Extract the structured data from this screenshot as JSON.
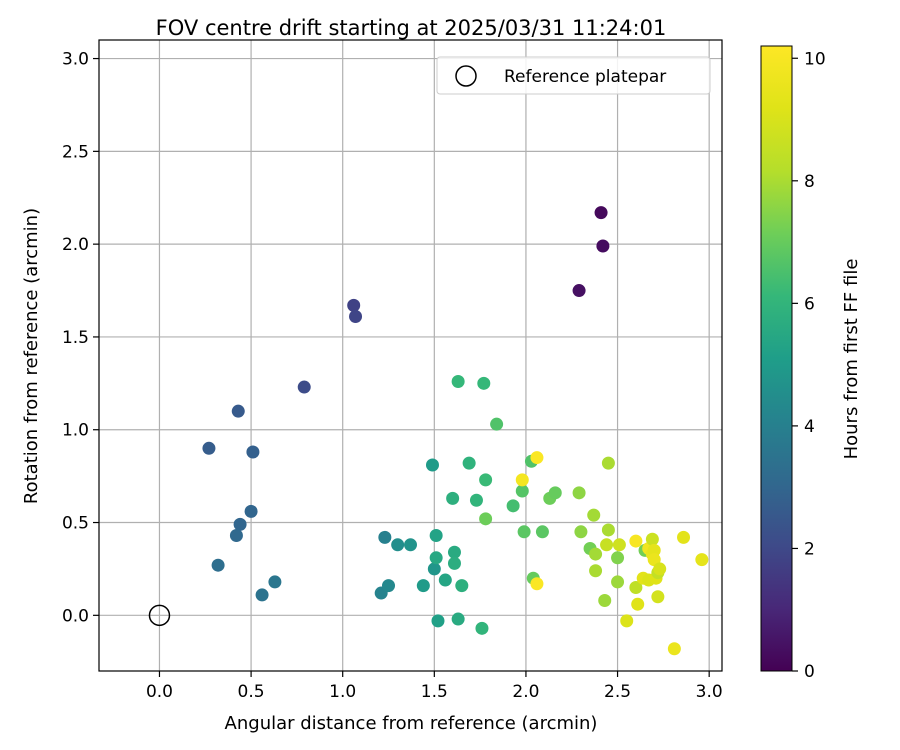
{
  "chart_data": {
    "type": "scatter",
    "title": "FOV centre drift starting at 2025/03/31 11:24:01",
    "xlabel": "Angular distance from reference (arcmin)",
    "ylabel": "Rotation from reference (arcmin)",
    "xlim": [
      -0.33,
      3.07
    ],
    "ylim": [
      -0.3,
      3.1
    ],
    "x_ticks": [
      "0.0",
      "0.5",
      "1.0",
      "1.5",
      "2.0",
      "2.5",
      "3.0"
    ],
    "y_ticks": [
      "0.0",
      "0.5",
      "1.0",
      "1.5",
      "2.0",
      "2.5",
      "3.0"
    ],
    "grid": true,
    "legend": {
      "label": "Reference platepar",
      "placement": "top-right"
    },
    "reference_point": {
      "x": 0.0,
      "y": 0.0
    },
    "colorbar": {
      "label": "Hours from first FF file",
      "colormap": "viridis",
      "range": [
        0,
        10.2
      ],
      "ticks": [
        "0",
        "2",
        "4",
        "6",
        "8",
        "10"
      ]
    },
    "points": [
      {
        "x": 2.41,
        "y": 2.17,
        "c": 0.2
      },
      {
        "x": 2.42,
        "y": 1.99,
        "c": 0.3
      },
      {
        "x": 2.29,
        "y": 1.75,
        "c": 0.4
      },
      {
        "x": 1.06,
        "y": 1.67,
        "c": 1.8
      },
      {
        "x": 1.07,
        "y": 1.61,
        "c": 1.9
      },
      {
        "x": 0.79,
        "y": 1.23,
        "c": 2.1
      },
      {
        "x": 0.43,
        "y": 1.1,
        "c": 2.6
      },
      {
        "x": 0.27,
        "y": 0.9,
        "c": 2.7
      },
      {
        "x": 0.51,
        "y": 0.88,
        "c": 2.8
      },
      {
        "x": 0.5,
        "y": 0.56,
        "c": 3.0
      },
      {
        "x": 0.44,
        "y": 0.49,
        "c": 3.0
      },
      {
        "x": 0.42,
        "y": 0.43,
        "c": 3.1
      },
      {
        "x": 0.32,
        "y": 0.27,
        "c": 3.3
      },
      {
        "x": 0.56,
        "y": 0.11,
        "c": 3.5
      },
      {
        "x": 0.63,
        "y": 0.18,
        "c": 3.6
      },
      {
        "x": 1.23,
        "y": 0.42,
        "c": 4.0
      },
      {
        "x": 1.21,
        "y": 0.12,
        "c": 4.1
      },
      {
        "x": 1.25,
        "y": 0.16,
        "c": 4.3
      },
      {
        "x": 1.3,
        "y": 0.38,
        "c": 4.5
      },
      {
        "x": 1.37,
        "y": 0.38,
        "c": 4.7
      },
      {
        "x": 1.44,
        "y": 0.16,
        "c": 5.0
      },
      {
        "x": 1.49,
        "y": 0.81,
        "c": 5.0
      },
      {
        "x": 1.5,
        "y": 0.25,
        "c": 4.8
      },
      {
        "x": 1.51,
        "y": 0.43,
        "c": 5.3
      },
      {
        "x": 1.51,
        "y": 0.31,
        "c": 5.5
      },
      {
        "x": 1.52,
        "y": -0.03,
        "c": 5.2
      },
      {
        "x": 1.56,
        "y": 0.19,
        "c": 5.4
      },
      {
        "x": 1.6,
        "y": 0.63,
        "c": 5.8
      },
      {
        "x": 1.61,
        "y": 0.34,
        "c": 5.6
      },
      {
        "x": 1.61,
        "y": 0.28,
        "c": 5.7
      },
      {
        "x": 1.63,
        "y": 1.26,
        "c": 6.1
      },
      {
        "x": 1.63,
        "y": -0.02,
        "c": 5.6
      },
      {
        "x": 1.65,
        "y": 0.16,
        "c": 5.8
      },
      {
        "x": 1.69,
        "y": 0.82,
        "c": 5.9
      },
      {
        "x": 1.73,
        "y": 0.62,
        "c": 6.0
      },
      {
        "x": 1.76,
        "y": -0.07,
        "c": 6.0
      },
      {
        "x": 1.77,
        "y": 1.25,
        "c": 6.1
      },
      {
        "x": 1.78,
        "y": 0.73,
        "c": 6.2
      },
      {
        "x": 1.78,
        "y": 0.52,
        "c": 7.1
      },
      {
        "x": 1.84,
        "y": 1.03,
        "c": 6.6
      },
      {
        "x": 1.93,
        "y": 0.59,
        "c": 6.4
      },
      {
        "x": 1.98,
        "y": 0.67,
        "c": 6.7
      },
      {
        "x": 1.99,
        "y": 0.45,
        "c": 6.8
      },
      {
        "x": 2.03,
        "y": 0.83,
        "c": 6.6
      },
      {
        "x": 2.04,
        "y": 0.2,
        "c": 7.0
      },
      {
        "x": 2.09,
        "y": 0.45,
        "c": 6.8
      },
      {
        "x": 2.13,
        "y": 0.63,
        "c": 7.1
      },
      {
        "x": 2.16,
        "y": 0.66,
        "c": 7.0
      },
      {
        "x": 1.98,
        "y": 0.73,
        "c": 9.9
      },
      {
        "x": 2.06,
        "y": 0.85,
        "c": 10.1
      },
      {
        "x": 2.06,
        "y": 0.17,
        "c": 10.1
      },
      {
        "x": 2.29,
        "y": 0.66,
        "c": 7.6
      },
      {
        "x": 2.3,
        "y": 0.45,
        "c": 7.6
      },
      {
        "x": 2.35,
        "y": 0.36,
        "c": 7.2
      },
      {
        "x": 2.37,
        "y": 0.54,
        "c": 7.9
      },
      {
        "x": 2.38,
        "y": 0.33,
        "c": 7.9
      },
      {
        "x": 2.38,
        "y": 0.24,
        "c": 8.0
      },
      {
        "x": 2.43,
        "y": 0.08,
        "c": 7.8
      },
      {
        "x": 2.45,
        "y": 0.82,
        "c": 8.0
      },
      {
        "x": 2.45,
        "y": 0.46,
        "c": 8.0
      },
      {
        "x": 2.44,
        "y": 0.38,
        "c": 8.6
      },
      {
        "x": 2.5,
        "y": 0.31,
        "c": 7.4
      },
      {
        "x": 2.5,
        "y": 0.18,
        "c": 7.8
      },
      {
        "x": 2.51,
        "y": 0.38,
        "c": 8.8
      },
      {
        "x": 2.55,
        "y": -0.03,
        "c": 9.1
      },
      {
        "x": 2.6,
        "y": 0.4,
        "c": 10.0
      },
      {
        "x": 2.6,
        "y": 0.15,
        "c": 8.4
      },
      {
        "x": 2.61,
        "y": 0.06,
        "c": 9.2
      },
      {
        "x": 2.64,
        "y": 0.2,
        "c": 9.3
      },
      {
        "x": 2.65,
        "y": 0.35,
        "c": 7.2
      },
      {
        "x": 2.67,
        "y": 0.36,
        "c": 9.8
      },
      {
        "x": 2.67,
        "y": 0.19,
        "c": 9.1
      },
      {
        "x": 2.69,
        "y": 0.41,
        "c": 8.7
      },
      {
        "x": 2.69,
        "y": 0.33,
        "c": 9.5
      },
      {
        "x": 2.7,
        "y": 0.35,
        "c": 9.4
      },
      {
        "x": 2.7,
        "y": 0.3,
        "c": 9.6
      },
      {
        "x": 2.71,
        "y": 0.2,
        "c": 9.2
      },
      {
        "x": 2.72,
        "y": 0.1,
        "c": 8.9
      },
      {
        "x": 2.72,
        "y": 0.23,
        "c": 8.5
      },
      {
        "x": 2.73,
        "y": 0.25,
        "c": 9.0
      },
      {
        "x": 2.81,
        "y": -0.18,
        "c": 9.6
      },
      {
        "x": 2.86,
        "y": 0.42,
        "c": 9.3
      },
      {
        "x": 2.96,
        "y": 0.3,
        "c": 9.4
      }
    ]
  }
}
